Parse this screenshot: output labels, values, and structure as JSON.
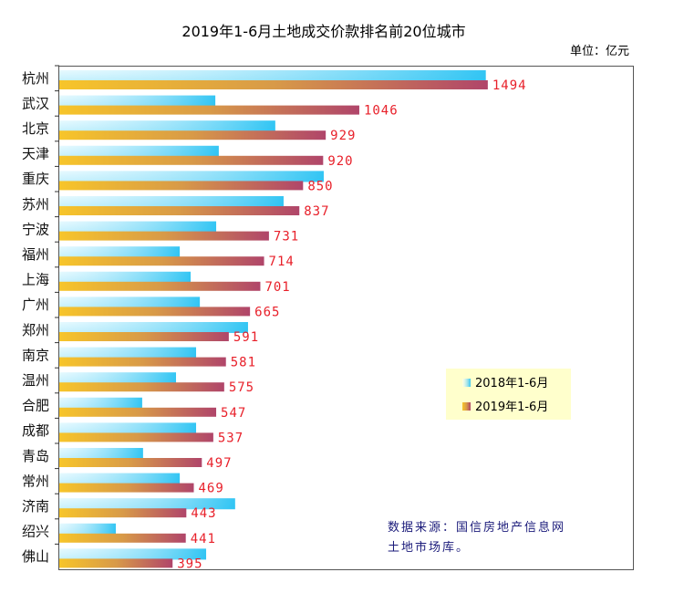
{
  "chart_data": {
    "type": "bar",
    "orientation": "horizontal",
    "title": "2019年1-6月土地成交价款排名前20位城市",
    "unit_label": "单位：亿元",
    "categories": [
      "杭州",
      "武汉",
      "北京",
      "天津",
      "重庆",
      "苏州",
      "宁波",
      "福州",
      "上海",
      "广州",
      "郑州",
      "南京",
      "温州",
      "合肥",
      "成都",
      "青岛",
      "常州",
      "济南",
      "绍兴",
      "佛山"
    ],
    "series": [
      {
        "name": "2018年1-6月",
        "color": "#33c8f5",
        "values": [
          1487,
          544,
          753,
          556,
          922,
          782,
          547,
          420,
          458,
          490,
          658,
          477,
          407,
          289,
          477,
          292,
          420,
          613,
          197,
          512
        ]
      },
      {
        "name": "2019年1-6月",
        "color": "#c0506a",
        "values": [
          1494,
          1046,
          929,
          920,
          850,
          837,
          731,
          714,
          701,
          665,
          591,
          581,
          575,
          547,
          537,
          497,
          469,
          443,
          441,
          395
        ]
      }
    ],
    "xlim": [
      0,
      2000
    ],
    "grid": false,
    "legend_position": "right-middle",
    "data_labels": "2019 series only",
    "source_note": "数据来源：国信房地产信息网土地市场库。"
  }
}
